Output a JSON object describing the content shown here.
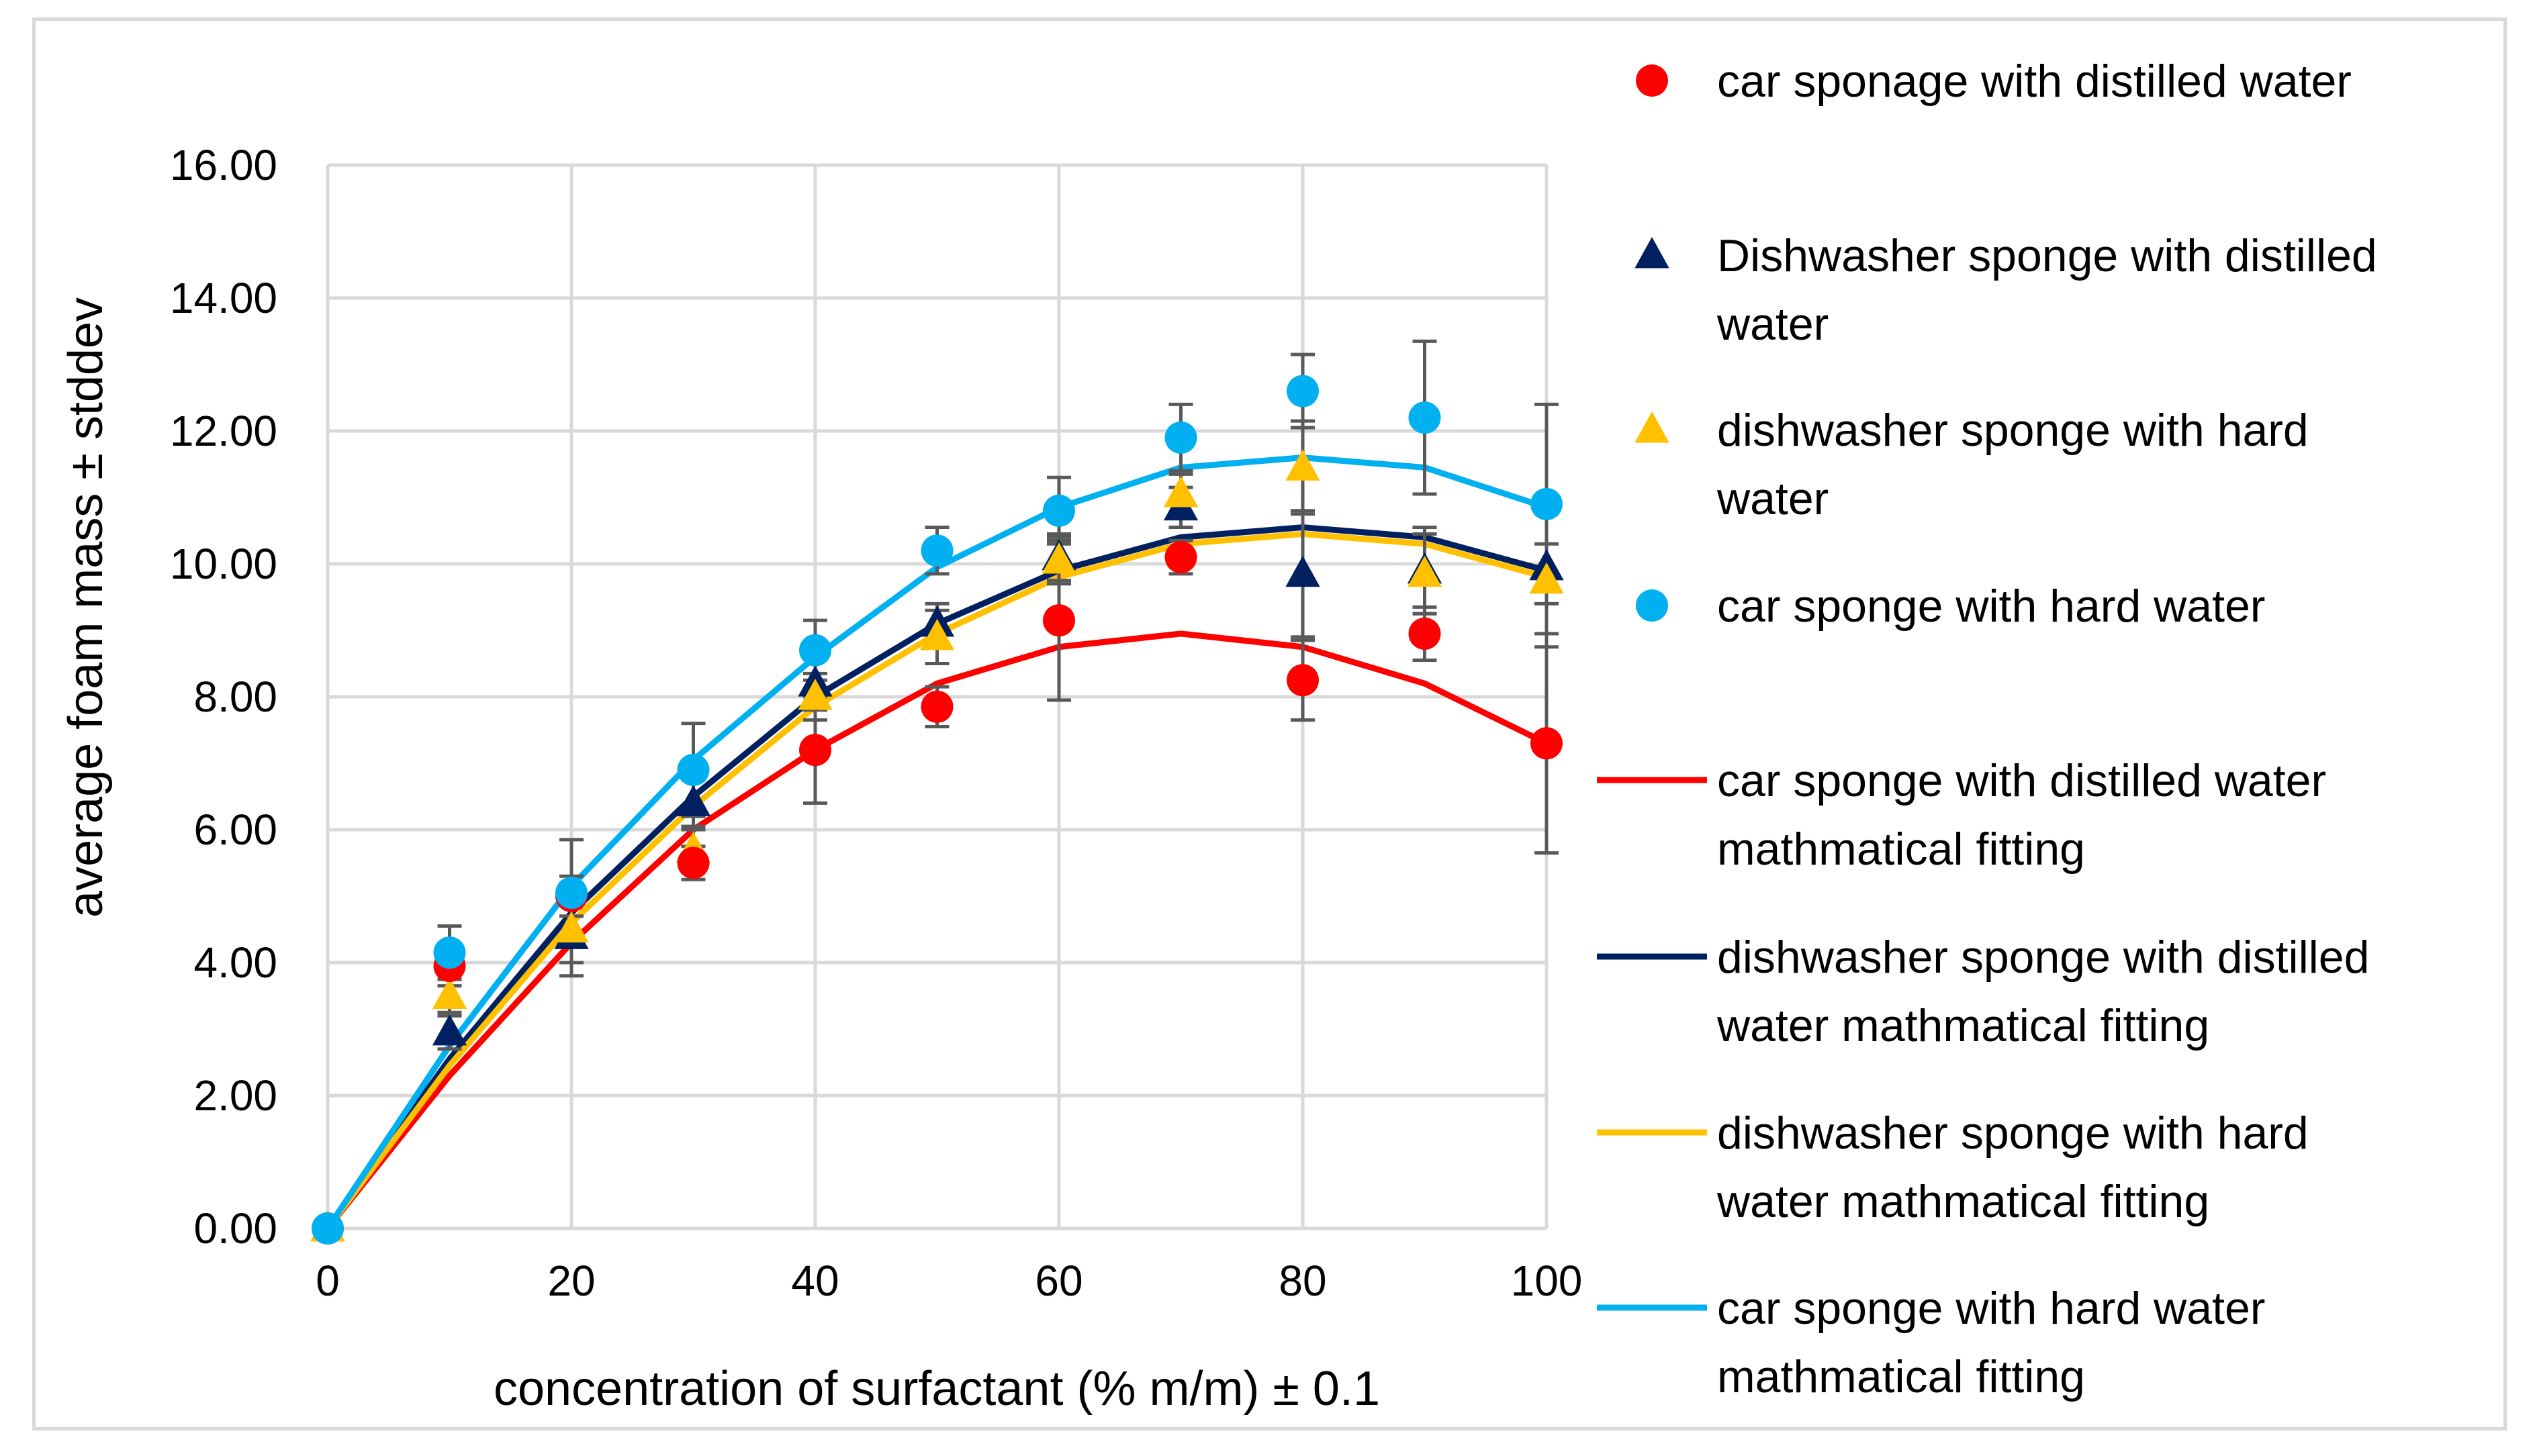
{
  "chart_data": {
    "type": "scatter",
    "title": "",
    "xlabel": "concentration of surfactant (% m/m) ± 0.1",
    "ylabel": "average foam mass ± stddev",
    "xlim": [
      0,
      100
    ],
    "ylim": [
      0,
      16
    ],
    "grid": true,
    "legend_position": "right",
    "x_ticks": [
      "0",
      "20",
      "40",
      "60",
      "80",
      "100"
    ],
    "y_ticks": [
      "0.00",
      "2.00",
      "4.00",
      "6.00",
      "8.00",
      "10.00",
      "12.00",
      "14.00",
      "16.00"
    ],
    "series": [
      {
        "name": "car sponage with distilled water",
        "kind": "marker",
        "marker": "circle",
        "color": "#ff0000",
        "x": [
          0,
          10,
          20,
          30,
          40,
          50,
          60,
          70,
          80,
          90,
          100
        ],
        "y": [
          0.0,
          3.95,
          5.0,
          5.5,
          7.2,
          7.85,
          9.15,
          10.1,
          8.25,
          8.95,
          7.3
        ],
        "err": [
          0,
          0.3,
          0.3,
          0.25,
          0.8,
          0.3,
          1.2,
          0.25,
          0.6,
          0.4,
          1.65
        ]
      },
      {
        "name": "Dishwasher sponge with distilled water",
        "kind": "marker",
        "marker": "triangle",
        "color": "#002060",
        "x": [
          0,
          10,
          20,
          30,
          40,
          50,
          60,
          70,
          80,
          90,
          100
        ],
        "y": [
          0.0,
          2.95,
          4.4,
          6.4,
          8.2,
          9.1,
          10.1,
          10.85,
          9.85,
          9.9,
          9.95
        ],
        "err": [
          0,
          0.25,
          0.6,
          0.35,
          0.4,
          0.3,
          0.35,
          0.3,
          0.95,
          0.65,
          0.35
        ]
      },
      {
        "name": "dishwasher sponge with hard water",
        "kind": "marker",
        "marker": "triangle",
        "color": "#ffc000",
        "x": [
          0,
          10,
          20,
          30,
          40,
          50,
          60,
          70,
          80,
          90,
          100
        ],
        "y": [
          0.0,
          3.5,
          4.5,
          5.7,
          8.0,
          8.9,
          10.05,
          11.05,
          11.45,
          9.85,
          9.75
        ],
        "err": [
          0,
          0.25,
          0.5,
          0.3,
          0.35,
          0.4,
          0.35,
          0.3,
          0.7,
          0.6,
          1.0
        ]
      },
      {
        "name": "car sponge with hard water",
        "kind": "marker",
        "marker": "circle",
        "color": "#00b0f0",
        "x": [
          0,
          10,
          20,
          30,
          40,
          50,
          60,
          70,
          80,
          90,
          100
        ],
        "y": [
          0.0,
          4.15,
          5.05,
          6.9,
          8.7,
          10.2,
          10.8,
          11.9,
          12.6,
          12.2,
          10.9
        ],
        "err": [
          0,
          0.4,
          0.8,
          0.7,
          0.45,
          0.35,
          0.5,
          0.5,
          0.55,
          1.15,
          1.5
        ]
      },
      {
        "name": "car sponge with distilled water mathmatical fitting",
        "kind": "line",
        "color": "#ff0000",
        "x": [
          0,
          10,
          20,
          30,
          40,
          50,
          60,
          70,
          80,
          90,
          100
        ],
        "y": [
          0.0,
          2.3,
          4.3,
          6.0,
          7.2,
          8.2,
          8.75,
          8.95,
          8.75,
          8.2,
          7.3
        ]
      },
      {
        "name": "dishwasher sponge with distilled water mathmatical fitting",
        "kind": "line",
        "color": "#002060",
        "x": [
          0,
          10,
          20,
          30,
          40,
          50,
          60,
          70,
          80,
          90,
          100
        ],
        "y": [
          0.0,
          2.55,
          4.75,
          6.5,
          8.0,
          9.1,
          9.9,
          10.4,
          10.55,
          10.4,
          9.9
        ]
      },
      {
        "name": "dishwasher sponge with hard water mathmatical fitting",
        "kind": "line",
        "color": "#ffc000",
        "x": [
          0,
          10,
          20,
          30,
          40,
          50,
          60,
          70,
          80,
          90,
          100
        ],
        "y": [
          0.0,
          2.45,
          4.6,
          6.35,
          7.85,
          8.95,
          9.8,
          10.3,
          10.45,
          10.3,
          9.8
        ]
      },
      {
        "name": "car sponge with hard water mathmatical fitting",
        "kind": "line",
        "color": "#00b0f0",
        "x": [
          0,
          10,
          20,
          30,
          40,
          50,
          60,
          70,
          80,
          90,
          100
        ],
        "y": [
          0.0,
          2.75,
          5.15,
          7.05,
          8.6,
          9.95,
          10.85,
          11.45,
          11.6,
          11.45,
          10.85
        ]
      }
    ]
  },
  "legend": {
    "items": [
      {
        "lines": [
          "car sponage with distilled water"
        ],
        "symbol": "circle",
        "color": "#ff0000"
      },
      {
        "lines": [
          "Dishwasher sponge with distilled",
          "water"
        ],
        "symbol": "triangle",
        "color": "#002060"
      },
      {
        "lines": [
          "dishwasher sponge with hard",
          "water"
        ],
        "symbol": "triangle",
        "color": "#ffc000"
      },
      {
        "lines": [
          "car sponge with hard water"
        ],
        "symbol": "circle",
        "color": "#00b0f0"
      },
      {
        "lines": [
          "car sponge with distilled water",
          "mathmatical fitting"
        ],
        "symbol": "line",
        "color": "#ff0000"
      },
      {
        "lines": [
          "dishwasher sponge with distilled",
          "water mathmatical fitting"
        ],
        "symbol": "line",
        "color": "#002060"
      },
      {
        "lines": [
          "dishwasher sponge with hard",
          "water mathmatical fitting"
        ],
        "symbol": "line",
        "color": "#ffc000"
      },
      {
        "lines": [
          "car sponge with hard water",
          "mathmatical fitting"
        ],
        "symbol": "line",
        "color": "#00b0f0"
      }
    ]
  },
  "colors": {
    "grid": "#d9d9d9",
    "errorbar": "#595959",
    "frame": "#d9d9d9"
  }
}
